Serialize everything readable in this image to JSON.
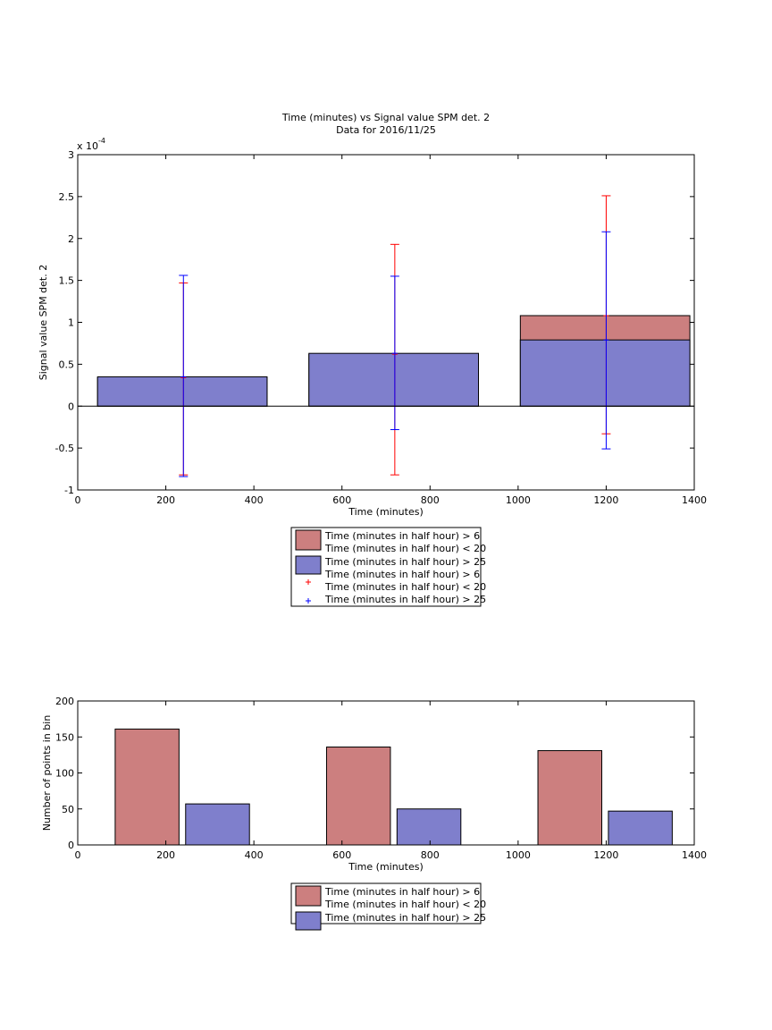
{
  "chart_data": [
    {
      "type": "bar",
      "title": "Time (minutes) vs Signal value SPM det. 2",
      "subtitle": "Data for 2016/11/25",
      "xlabel": "Time (minutes)",
      "ylabel": "Signal value SPM det. 2",
      "y_exponent_label": "x 10",
      "y_exponent_power": "-4",
      "xlim": [
        0,
        1400
      ],
      "ylim": [
        -1,
        3
      ],
      "x_ticks": [
        "0",
        "200",
        "400",
        "600",
        "800",
        "1000",
        "1200",
        "1400"
      ],
      "y_ticks": [
        "-1",
        "-0.5",
        "0",
        "0.5",
        "1",
        "1.5",
        "2",
        "2.5",
        "3"
      ],
      "grid": false,
      "bar_ranges": [
        [
          45,
          430
        ],
        [
          525,
          910
        ],
        [
          1005,
          1390
        ]
      ],
      "series": [
        {
          "name": "Time (minutes in half hour) > 6\nTime (minutes in half hour) < 20",
          "color": "#cc7f7f",
          "values": [
            0.34,
            0.62,
            1.08
          ],
          "error_x": [
            240,
            720,
            1200
          ],
          "error_low": [
            -0.82,
            -0.82,
            -0.33
          ],
          "error_high": [
            1.47,
            1.93,
            2.51
          ],
          "error_color": "#ff0000"
        },
        {
          "name": "Time (minutes in half hour) > 25",
          "color": "#7f7fcc",
          "values": [
            0.35,
            0.63,
            0.79
          ],
          "error_x": [
            240,
            720,
            1200
          ],
          "error_low": [
            -0.84,
            -0.28,
            -0.51
          ],
          "error_high": [
            1.56,
            1.55,
            2.08
          ],
          "error_color": "#0000ff"
        }
      ],
      "legend": {
        "placement": "below",
        "entries": [
          {
            "lines": [
              "Time (minutes in half hour) > 6",
              "Time (minutes in half hour) < 20"
            ],
            "marker": "patch",
            "color": "#cc7f7f"
          },
          {
            "lines": [
              "Time (minutes in half hour) > 25"
            ],
            "marker": "patch",
            "color": "#7f7fcc"
          },
          {
            "lines": [
              "Time (minutes in half hour) > 6",
              "Time (minutes in half hour) < 20"
            ],
            "marker": "plus",
            "color": "#ff0000"
          },
          {
            "lines": [
              "Time (minutes in half hour) > 25"
            ],
            "marker": "plus",
            "color": "#0000ff"
          }
        ]
      }
    },
    {
      "type": "bar",
      "xlabel": "Time (minutes)",
      "ylabel": "Number of points in bin",
      "xlim": [
        0,
        1400
      ],
      "ylim": [
        0,
        200
      ],
      "x_ticks": [
        "0",
        "200",
        "400",
        "600",
        "800",
        "1000",
        "1200",
        "1400"
      ],
      "y_ticks": [
        "0",
        "50",
        "100",
        "150",
        "200"
      ],
      "grid": false,
      "series": [
        {
          "name": "Time (minutes in half hour) > 6\nTime (minutes in half hour) < 20",
          "color": "#cc7f7f",
          "x_ranges": [
            [
              85,
              230
            ],
            [
              565,
              710
            ],
            [
              1045,
              1190
            ]
          ],
          "values": [
            161,
            136,
            131
          ]
        },
        {
          "name": "Time (minutes in half hour) > 25",
          "color": "#7f7fcc",
          "x_ranges": [
            [
              245,
              390
            ],
            [
              725,
              870
            ],
            [
              1205,
              1350
            ]
          ],
          "values": [
            57,
            50,
            47
          ]
        }
      ],
      "legend": {
        "placement": "below",
        "entries": [
          {
            "lines": [
              "Time (minutes in half hour) > 6",
              "Time (minutes in half hour) < 20"
            ],
            "marker": "patch",
            "color": "#cc7f7f"
          },
          {
            "lines": [
              "Time (minutes in half hour) > 25"
            ],
            "marker": "patch",
            "color": "#7f7fcc"
          }
        ]
      }
    }
  ]
}
